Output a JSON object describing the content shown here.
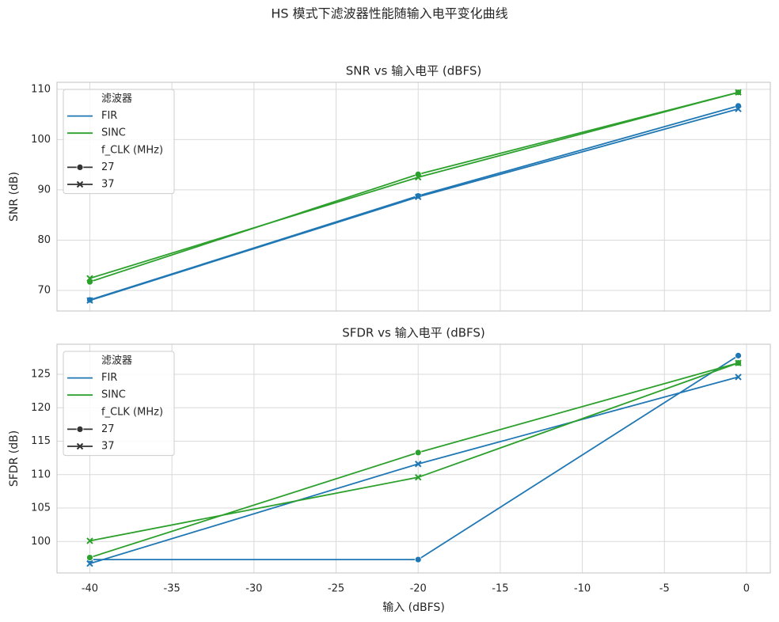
{
  "title": "HS 模式下滤波器性能随输入电平变化曲线",
  "chart_data": [
    {
      "type": "line",
      "title": "SNR vs 输入电平 (dBFS)",
      "ylabel": "SNR (dB)",
      "x": [
        -40,
        -20,
        -0.5
      ],
      "xlim": [
        -42,
        1.45
      ],
      "xticks": [
        -40,
        -35,
        -30,
        -25,
        -20,
        -15,
        -10,
        -5,
        0
      ],
      "xtick_labels": false,
      "ylim": [
        65.9,
        111.4
      ],
      "yticks": [
        70,
        80,
        90,
        100,
        110
      ],
      "grid": true,
      "legend": {
        "position": "upper left",
        "hue_title": "滤波器",
        "hue": [
          {
            "name": "FIR",
            "color": "#1f77b4"
          },
          {
            "name": "SINC",
            "color": "#2ca02c"
          }
        ],
        "style_title": "f_CLK (MHz)",
        "style": [
          {
            "name": "27",
            "marker": "o"
          },
          {
            "name": "37",
            "marker": "x"
          }
        ]
      },
      "series": [
        {
          "hue": 0,
          "style": 0,
          "values": [
            68.1,
            88.8,
            106.7
          ]
        },
        {
          "hue": 0,
          "style": 1,
          "values": [
            68.0,
            88.6,
            106.1
          ]
        },
        {
          "hue": 1,
          "style": 0,
          "values": [
            71.7,
            93.1,
            109.4
          ]
        },
        {
          "hue": 1,
          "style": 1,
          "values": [
            72.4,
            92.5,
            109.4
          ]
        }
      ]
    },
    {
      "type": "line",
      "title": "SFDR vs 输入电平 (dBFS)",
      "ylabel": "SFDR (dB)",
      "xlabel": "输入 (dBFS)",
      "x": [
        -40,
        -20,
        -0.5
      ],
      "xlim": [
        -42,
        1.45
      ],
      "xticks": [
        -40,
        -35,
        -30,
        -25,
        -20,
        -15,
        -10,
        -5,
        0
      ],
      "xtick_labels": true,
      "ylim": [
        95.3,
        129.5
      ],
      "yticks": [
        100,
        105,
        110,
        115,
        120,
        125
      ],
      "grid": true,
      "legend": {
        "position": "upper left",
        "hue_title": "滤波器",
        "hue": [
          {
            "name": "FIR",
            "color": "#1f77b4"
          },
          {
            "name": "SINC",
            "color": "#2ca02c"
          }
        ],
        "style_title": "f_CLK (MHz)",
        "style": [
          {
            "name": "27",
            "marker": "o"
          },
          {
            "name": "37",
            "marker": "x"
          }
        ]
      },
      "series": [
        {
          "hue": 0,
          "style": 0,
          "values": [
            97.3,
            97.3,
            127.8
          ]
        },
        {
          "hue": 0,
          "style": 1,
          "values": [
            96.7,
            111.6,
            124.6
          ]
        },
        {
          "hue": 1,
          "style": 0,
          "values": [
            97.6,
            113.3,
            126.7
          ]
        },
        {
          "hue": 1,
          "style": 1,
          "values": [
            100.1,
            109.6,
            126.7
          ]
        }
      ]
    }
  ]
}
